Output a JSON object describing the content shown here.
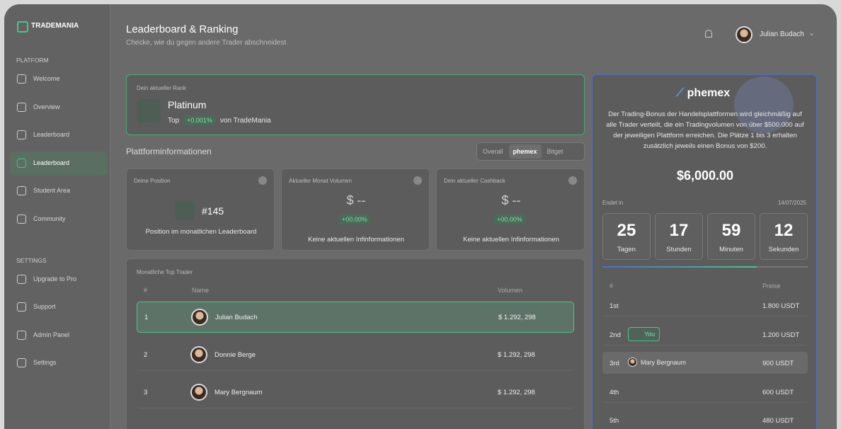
{
  "brand": "TRADEMANIA",
  "sidebar": {
    "sections": [
      {
        "title": "PLATFORM",
        "items": [
          "Welcome",
          "Overview",
          "Leaderboard",
          "Leaderboard",
          "Student Area",
          "Community"
        ]
      },
      {
        "title": "SETTINGS",
        "items": [
          "Upgrade to Pro",
          "Support",
          "Admin Panel",
          "Settings"
        ]
      }
    ]
  },
  "header": {
    "title": "Leaderboard & Ranking",
    "subtitle": "Checke, wie du gegen andere Trader abschneidest",
    "user": "Julian Budach"
  },
  "rank": {
    "label": "Dein aktueller Rank",
    "name": "Platinum",
    "prefix": "Top",
    "badge": "+0.001%",
    "suffix": "von TradeMania"
  },
  "platform": {
    "title": "Plattforminformationen",
    "tabs": [
      "Overall",
      "phemex",
      "Bitget"
    ]
  },
  "stats": [
    {
      "label": "Deine Position",
      "value": "#145",
      "caption": "Position im monatlichen Leaderboard"
    },
    {
      "label": "Aktueller Monat Volumen",
      "value": "$ --",
      "badge": "+00.00%",
      "caption": "Keine aktuellen Infinformationen"
    },
    {
      "label": "Dein aktueller Cashback",
      "value": "$ --",
      "badge": "+00.00%",
      "caption": "Keine aktuellen Infinformationen"
    }
  ],
  "table": {
    "title": "Monatliche Top Trader",
    "columns": [
      "#",
      "Name",
      "Volumen"
    ],
    "rows": [
      [
        "1",
        "Julian Budach",
        "$ 1.292, 298"
      ],
      [
        "2",
        "Donnie Berge",
        "$ 1.292, 298"
      ],
      [
        "3",
        "Mary Bergnaum",
        "$ 1.292, 298"
      ]
    ]
  },
  "promo": {
    "logo": "phemex",
    "text": "Der Trading-Bonus der Handelsplattformen wird gleichmäßig auf alle Trader verteilt, die ein Tradingvolumen von über $500.000 auf der jeweiligen Plattform erreichen. Die Plätze 1 bis 3 erhalten zusätzlich jeweils einen Bonus von $200.",
    "amount": "$6,000.00",
    "ends_label": "Endet in",
    "date": "14/07/2025",
    "countdown": [
      {
        "value": "25",
        "unit": "Tagen"
      },
      {
        "value": "17",
        "unit": "Stunden"
      },
      {
        "value": "59",
        "unit": "Minuten"
      },
      {
        "value": "12",
        "unit": "Sekunden"
      }
    ],
    "columns": [
      "#",
      "Preise"
    ],
    "prizes": [
      {
        "place": "1st",
        "prize": "1.800 USDT"
      },
      {
        "place": "2nd",
        "user": "You",
        "prize": "1.200 USDT"
      },
      {
        "place": "3rd",
        "user": "Mary Bergnaum",
        "prize": "900 USDT"
      },
      {
        "place": "4th",
        "prize": "600 USDT"
      },
      {
        "place": "5th",
        "prize": "480 USDT"
      }
    ]
  }
}
